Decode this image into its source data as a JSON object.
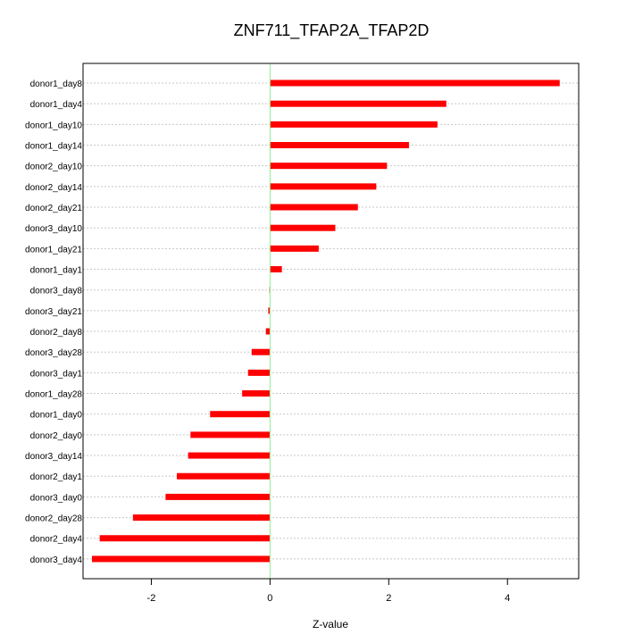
{
  "chart_data": {
    "type": "bar",
    "orientation": "horizontal",
    "title": "ZNF711_TFAP2A_TFAP2D",
    "xlabel": "Z-value",
    "ylabel": "",
    "xlim": [
      -3.15,
      5.2
    ],
    "xticks": [
      -2,
      0,
      2,
      4
    ],
    "grid": true,
    "reference_line": {
      "x": 0,
      "color": "#90ee90"
    },
    "bar_color": "#ff0000",
    "categories": [
      "donor1_day8",
      "donor1_day4",
      "donor1_day10",
      "donor1_day14",
      "donor2_day10",
      "donor2_day14",
      "donor2_day21",
      "donor3_day10",
      "donor1_day21",
      "donor1_day1",
      "donor3_day8",
      "donor3_day21",
      "donor2_day8",
      "donor3_day28",
      "donor3_day1",
      "donor1_day28",
      "donor1_day0",
      "donor2_day0",
      "donor3_day14",
      "donor2_day1",
      "donor3_day0",
      "donor2_day28",
      "donor2_day4",
      "donor3_day4"
    ],
    "values": [
      4.88,
      2.97,
      2.82,
      2.34,
      1.97,
      1.79,
      1.48,
      1.1,
      0.82,
      0.2,
      -0.01,
      -0.03,
      -0.07,
      -0.31,
      -0.37,
      -0.47,
      -1.01,
      -1.34,
      -1.38,
      -1.57,
      -1.76,
      -2.31,
      -2.87,
      -3.0
    ]
  }
}
